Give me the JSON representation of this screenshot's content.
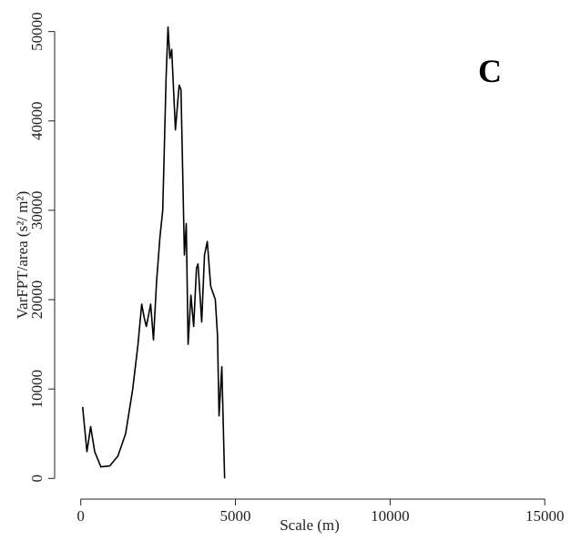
{
  "chart_data": {
    "type": "line",
    "x_label": "Scale (m)",
    "y_label": "VarFPT/area (s²/ m²)",
    "annotation": "C",
    "xlim": [
      -550,
      15700
    ],
    "ylim": [
      -1500,
      52000
    ],
    "xticks": [
      0,
      5000,
      10000,
      15000
    ],
    "yticks": [
      0,
      10000,
      20000,
      30000,
      40000,
      50000
    ],
    "series": [
      {
        "color": "#000000",
        "x": [
          60,
          200,
          320,
          450,
          650,
          940,
          1200,
          1450,
          1680,
          1850,
          1970,
          2050,
          2120,
          2260,
          2350,
          2450,
          2560,
          2650,
          2760,
          2820,
          2880,
          2940,
          3060,
          3180,
          3240,
          3350,
          3410,
          3470,
          3560,
          3650,
          3740,
          3790,
          3910,
          4000,
          4090,
          4200,
          4350,
          4420,
          4470,
          4560,
          4650
        ],
        "values": [
          8000,
          3000,
          5800,
          3000,
          1300,
          1400,
          2500,
          5000,
          10000,
          15000,
          19500,
          18000,
          17000,
          19500,
          15500,
          22000,
          27000,
          30000,
          45000,
          50500,
          47000,
          48000,
          39000,
          44000,
          43500,
          25000,
          28500,
          15000,
          20500,
          17000,
          23500,
          24000,
          17500,
          25000,
          26500,
          21500,
          20000,
          16000,
          7000,
          12500,
          0
        ]
      }
    ]
  }
}
